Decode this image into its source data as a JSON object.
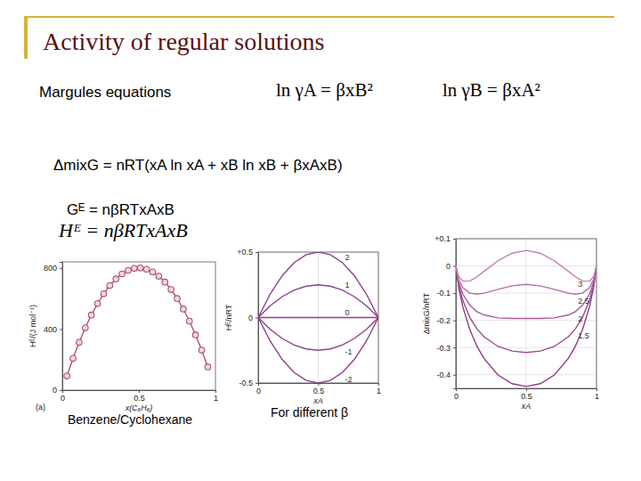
{
  "slide": {
    "title": "Activity of regular solutions",
    "subtitle": "Margules equations",
    "equations": [
      "ln γA = βxB²",
      "ln γB = βxA²"
    ],
    "lines": [
      "ΔmixG = nRT(xA ln xA + xB ln xB + βxAxB)",
      "Gᴱ = nβRTxAxB",
      "Hᴱ = nβRTxAxB"
    ]
  },
  "chart_data": [
    {
      "type": "line",
      "title": "Benzene/Cyclohexane",
      "x_label": "x(C₆H₆)",
      "y_label": "Hᴱ/(J mol⁻¹)",
      "annotations": [
        "(a)"
      ],
      "xlim": [
        0,
        1
      ],
      "xticks": [
        0,
        0.5,
        1
      ],
      "ylim": [
        0,
        840
      ],
      "yticks": [
        0,
        400,
        800
      ],
      "grid": false,
      "x": [
        0.03,
        0.07,
        0.11,
        0.15,
        0.19,
        0.23,
        0.27,
        0.31,
        0.35,
        0.39,
        0.43,
        0.47,
        0.51,
        0.55,
        0.59,
        0.63,
        0.67,
        0.71,
        0.75,
        0.79,
        0.83,
        0.87,
        0.91,
        0.95
      ],
      "series": [
        {
          "color": "#a8566a",
          "marker": "circle",
          "values": [
            93,
            208,
            313,
            408,
            492,
            567,
            631,
            685,
            728,
            761,
            784,
            797,
            800,
            792,
            774,
            746,
            708,
            659,
            600,
            531,
            452,
            362,
            262,
            152
          ]
        }
      ]
    },
    {
      "type": "line",
      "title": "For different β",
      "x_label": "xA",
      "y_label": "Hᴱ/nRT",
      "xlim": [
        0,
        1
      ],
      "xticks": [
        0,
        0.5,
        1
      ],
      "ylim": [
        -0.5,
        0.5
      ],
      "yticks": [
        {
          "value": 0.5,
          "label": "+0.5"
        },
        0,
        -0.5
      ],
      "grid": true,
      "x": [
        0,
        0.1,
        0.2,
        0.3,
        0.4,
        0.5,
        0.6,
        0.7,
        0.8,
        0.9,
        1
      ],
      "series": [
        {
          "name": "2",
          "color": "#8e3f8a",
          "values": [
            0,
            0.18,
            0.32,
            0.42,
            0.48,
            0.5,
            0.48,
            0.42,
            0.32,
            0.18,
            0
          ]
        },
        {
          "name": "1",
          "color": "#8e3f8a",
          "values": [
            0,
            0.09,
            0.16,
            0.21,
            0.24,
            0.25,
            0.24,
            0.21,
            0.16,
            0.09,
            0
          ]
        },
        {
          "name": "0",
          "color": "#8e3f8a",
          "values": [
            0,
            0,
            0,
            0,
            0,
            0,
            0,
            0,
            0,
            0,
            0
          ]
        },
        {
          "name": "-1",
          "color": "#8e3f8a",
          "values": [
            0,
            -0.09,
            -0.16,
            -0.21,
            -0.24,
            -0.25,
            -0.24,
            -0.21,
            -0.16,
            -0.09,
            0
          ]
        },
        {
          "name": "-2",
          "color": "#8e3f8a",
          "values": [
            0,
            -0.18,
            -0.32,
            -0.42,
            -0.48,
            -0.5,
            -0.48,
            -0.42,
            -0.32,
            -0.18,
            0
          ]
        }
      ]
    },
    {
      "type": "line",
      "x_label": "xA",
      "y_label": "ΔmixG/nRT",
      "xlim": [
        0,
        1
      ],
      "xticks": [
        0,
        0.5,
        1
      ],
      "ylim": [
        -0.45,
        0.1
      ],
      "yticks": [
        {
          "value": 0.1,
          "label": "+0.1"
        },
        0,
        -0.1,
        -0.2,
        -0.3,
        -0.4
      ],
      "grid": true,
      "x": [
        0,
        0.02,
        0.05,
        0.1,
        0.15,
        0.2,
        0.3,
        0.4,
        0.5,
        0.6,
        0.7,
        0.8,
        0.85,
        0.9,
        0.95,
        0.98,
        1
      ],
      "series": [
        {
          "color": "#8e3a84",
          "values": [
            0,
            -0.078,
            -0.151,
            -0.235,
            -0.295,
            -0.34,
            -0.401,
            -0.433,
            -0.443,
            -0.433,
            -0.401,
            -0.34,
            -0.295,
            -0.235,
            -0.151,
            -0.078,
            0
          ]
        },
        {
          "name": "1.5",
          "color": "#9c4a90",
          "values": [
            0,
            -0.069,
            -0.127,
            -0.19,
            -0.231,
            -0.26,
            -0.296,
            -0.313,
            -0.318,
            -0.313,
            -0.296,
            -0.26,
            -0.231,
            -0.19,
            -0.127,
            -0.069,
            0
          ]
        },
        {
          "name": "2",
          "color": "#aa5a9c",
          "values": [
            0,
            -0.059,
            -0.104,
            -0.145,
            -0.168,
            -0.18,
            -0.191,
            -0.193,
            -0.193,
            -0.193,
            -0.191,
            -0.18,
            -0.168,
            -0.145,
            -0.104,
            -0.059,
            0
          ]
        },
        {
          "name": "2.5",
          "color": "#b86aa8",
          "values": [
            0,
            -0.049,
            -0.08,
            -0.1,
            -0.104,
            -0.1,
            -0.086,
            -0.073,
            -0.068,
            -0.073,
            -0.086,
            -0.1,
            -0.104,
            -0.1,
            -0.08,
            -0.049,
            0
          ]
        },
        {
          "name": "3",
          "color": "#c57ab4",
          "values": [
            0,
            -0.039,
            -0.056,
            -0.055,
            -0.04,
            -0.02,
            0.019,
            0.047,
            0.057,
            0.047,
            0.019,
            -0.02,
            -0.04,
            -0.055,
            -0.056,
            -0.039,
            0
          ]
        }
      ]
    }
  ]
}
